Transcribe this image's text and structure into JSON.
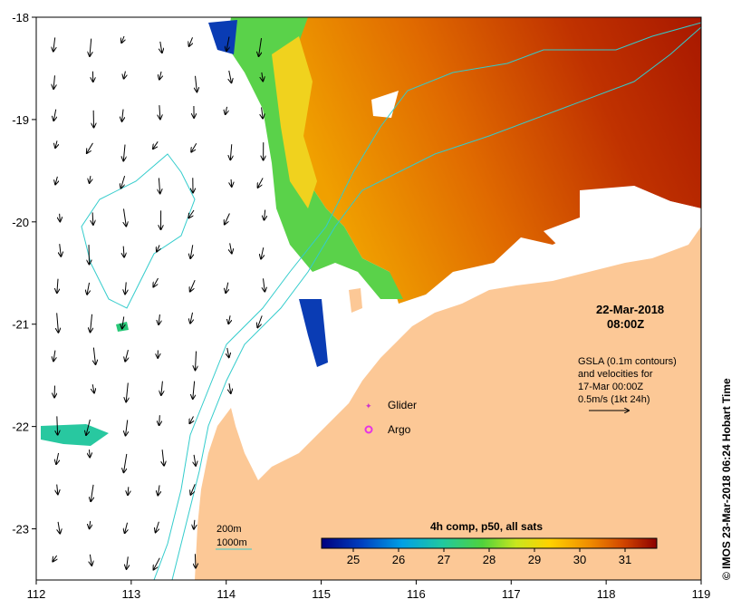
{
  "map": {
    "date_line": "22-Mar-2018",
    "time_line": "08:00Z",
    "gsla_note": [
      "GSLA (0.1m contours)",
      "and velocities for",
      "17-Mar 00:00Z",
      "0.5m/s (1kt 24h)"
    ],
    "legend": {
      "glider_label": "Glider",
      "argo_label": "Argo",
      "glider_color": "#cc33cc",
      "argo_color": "#e633e6"
    },
    "depth_legend": {
      "label_200": "200m",
      "label_1000": "1000m",
      "contour_color": "#33cccc"
    },
    "colorbar": {
      "title": "4h comp, p50, all sats",
      "min": 24.3,
      "max": 31.7,
      "tick_labels": [
        "25",
        "26",
        "27",
        "28",
        "29",
        "30",
        "31"
      ],
      "tick_values": [
        25,
        26,
        27,
        28,
        29,
        30,
        31
      ]
    },
    "axes": {
      "lon_labels": [
        "112",
        "113",
        "114",
        "115",
        "116",
        "117",
        "118",
        "119"
      ],
      "lat_labels": [
        "-18",
        "-19",
        "-20",
        "-21",
        "-22",
        "-23"
      ],
      "lon_range": [
        112,
        119
      ],
      "lat_range": [
        -23.5,
        -18
      ]
    },
    "credit": "© IMOS 23-Mar-2018 06:24 Hobart Time",
    "colors": {
      "land": "#fcc896",
      "sea_missing": "#ffffff",
      "arrow": "#000000",
      "sst_hot": "#b41e00",
      "sst_warm": "#e67800",
      "sst_mid": "#28c828",
      "sst_cool": "#0a3cb4"
    }
  }
}
